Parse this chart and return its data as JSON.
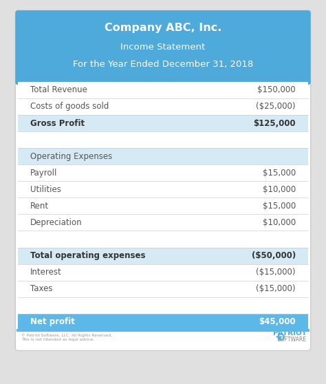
{
  "title_line1": "Company ABC, Inc.",
  "title_line2": "Income Statement",
  "title_line3": "For the Year Ended December 31, 2018",
  "header_bg": "#4DAADB",
  "outer_bg": "#E0E0E0",
  "net_profit_bg": "#5BB8E8",
  "rows": [
    {
      "label": "Total Revenue",
      "value": "$150,000",
      "bold": false,
      "bg": "#FFFFFF",
      "net": false
    },
    {
      "label": "Costs of goods sold",
      "value": "($25,000)",
      "bold": false,
      "bg": "#FFFFFF",
      "net": false
    },
    {
      "label": "Gross Profit",
      "value": "$125,000",
      "bold": true,
      "bg": "#D6EAF5",
      "net": false
    },
    {
      "label": "",
      "value": "",
      "bold": false,
      "bg": "#FFFFFF",
      "net": false
    },
    {
      "label": "Operating Expenses",
      "value": "",
      "bold": false,
      "bg": "#D6EAF5",
      "net": false
    },
    {
      "label": "Payroll",
      "value": "$15,000",
      "bold": false,
      "bg": "#FFFFFF",
      "net": false
    },
    {
      "label": "Utilities",
      "value": "$10,000",
      "bold": false,
      "bg": "#FFFFFF",
      "net": false
    },
    {
      "label": "Rent",
      "value": "$15,000",
      "bold": false,
      "bg": "#FFFFFF",
      "net": false
    },
    {
      "label": "Depreciation",
      "value": "$10,000",
      "bold": false,
      "bg": "#FFFFFF",
      "net": false
    },
    {
      "label": "",
      "value": "",
      "bold": false,
      "bg": "#FFFFFF",
      "net": false
    },
    {
      "label": "Total operating expenses",
      "value": "($50,000)",
      "bold": true,
      "bg": "#D6EAF5",
      "net": false
    },
    {
      "label": "Interest",
      "value": "($15,000)",
      "bold": false,
      "bg": "#FFFFFF",
      "net": false
    },
    {
      "label": "Taxes",
      "value": "($15,000)",
      "bold": false,
      "bg": "#FFFFFF",
      "net": false
    },
    {
      "label": "",
      "value": "",
      "bold": false,
      "bg": "#FFFFFF",
      "net": false
    },
    {
      "label": "Net profit",
      "value": "$45,000",
      "bold": true,
      "bg": "#5BB8E8",
      "net": true
    }
  ],
  "footer_left1": "© Patriot Software, LLC. All Rights Reserved.",
  "footer_left2": "This is not intended as legal advice.",
  "title_color": "#FFFFFF",
  "text_color": "#555555",
  "bold_text_color": "#333333",
  "net_text_color": "#FFFFFF",
  "figsize": [
    4.74,
    5.58
  ],
  "dpi": 100
}
